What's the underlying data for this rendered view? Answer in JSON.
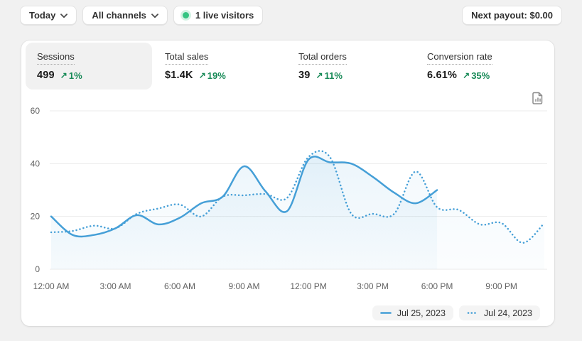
{
  "topbar": {
    "date_filter": "Today",
    "channel_filter": "All channels",
    "live_visitors": "1 live visitors",
    "next_payout": "Next payout: $0.00"
  },
  "icons": {
    "up_arrow": "↗",
    "chevron_down": "⌄",
    "live_dot": "●",
    "report": "document-with-bar-chart"
  },
  "metrics": [
    {
      "id": "sessions",
      "label": "Sessions",
      "value": "499",
      "change": "1%",
      "direction": "up",
      "selected": true
    },
    {
      "id": "total-sales",
      "label": "Total sales",
      "value": "$1.4K",
      "change": "19%",
      "direction": "up",
      "selected": false
    },
    {
      "id": "total-orders",
      "label": "Total orders",
      "value": "39",
      "change": "11%",
      "direction": "up",
      "selected": false
    },
    {
      "id": "conversion-rate",
      "label": "Conversion rate",
      "value": "6.61%",
      "change": "35%",
      "direction": "up",
      "selected": false
    }
  ],
  "colors": {
    "page_bg": "#f1f1f1",
    "card_bg": "#ffffff",
    "accent_blue": "#459fd7",
    "positive_green": "#178a57",
    "live_dot_green": "#33c481",
    "grid_line": "#ebebeb",
    "axis_text": "#616161"
  },
  "chart_data": {
    "type": "line",
    "title": "Sessions by hour, today vs yesterday",
    "x_unit": "hour",
    "start_hour": 0,
    "x_tick_hours": [
      0,
      3,
      6,
      9,
      12,
      15,
      18,
      21
    ],
    "x_tick_labels": [
      "12:00 AM",
      "3:00 AM",
      "6:00 AM",
      "9:00 AM",
      "12:00 PM",
      "3:00 PM",
      "6:00 PM",
      "9:00 PM"
    ],
    "ylim": [
      0,
      60
    ],
    "y_ticks": [
      0,
      20,
      40,
      60
    ],
    "y_tick_labels": [
      "0",
      "20",
      "40",
      "60"
    ],
    "grid": "horizontal",
    "legend_position": "bottom-right",
    "series": [
      {
        "name": "Jul 25, 2023",
        "line_style": "solid",
        "color": "#459fd7",
        "values": [
          20,
          13,
          13,
          15.5,
          20.5,
          17,
          19.5,
          25,
          27.5,
          39,
          29.5,
          22,
          41.5,
          40.5,
          40,
          35,
          29,
          25,
          30
        ]
      },
      {
        "name": "Jul 24, 2023",
        "line_style": "dotted",
        "color": "#459fd7",
        "values": [
          14,
          14.5,
          16.5,
          15.5,
          21,
          23,
          24.5,
          20,
          27.5,
          28,
          28.5,
          27,
          42.5,
          42.5,
          21,
          21,
          21,
          37,
          23.5,
          22.5,
          17,
          17.5,
          10,
          17.5
        ]
      }
    ]
  }
}
